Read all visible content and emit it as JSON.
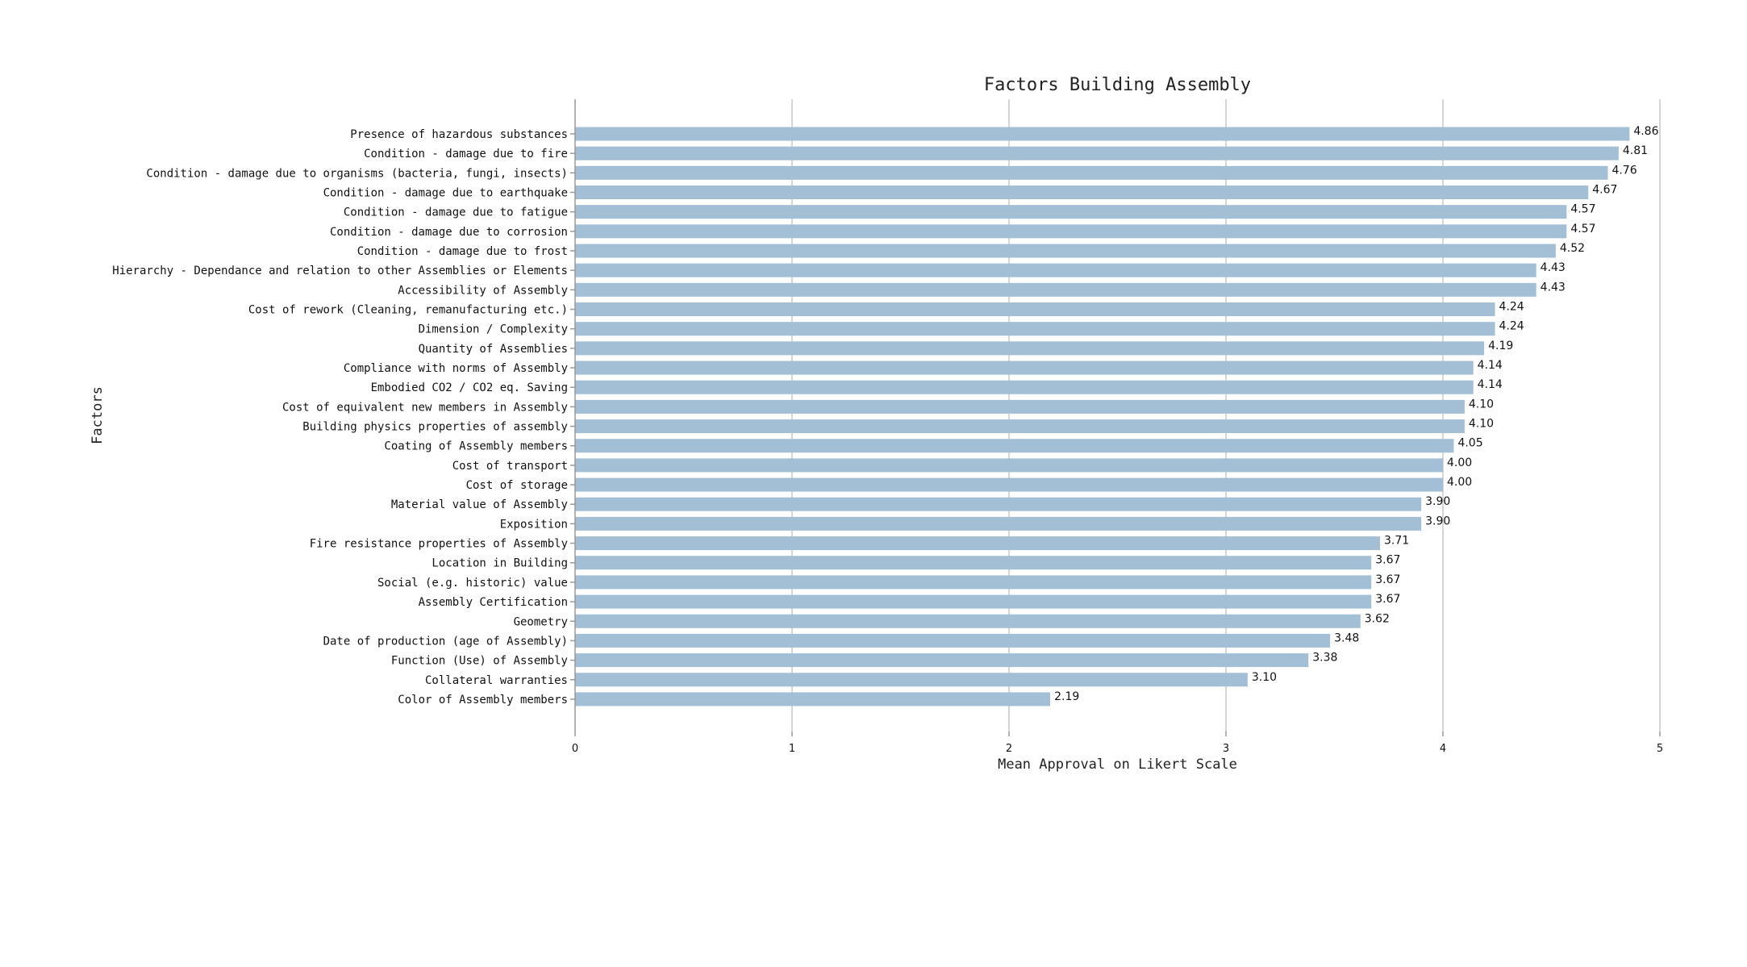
{
  "chart_data": {
    "type": "bar",
    "orientation": "horizontal",
    "title": "Factors Building Assembly",
    "xlabel": "Mean Approval on Likert Scale",
    "ylabel": "Factors",
    "xlim": [
      0,
      5
    ],
    "xticks": [
      0,
      1,
      2,
      3,
      4,
      5
    ],
    "grid": "vertical",
    "bar_color": "#a2bfd6",
    "categories": [
      "Presence of hazardous substances",
      "Condition - damage due to fire",
      "Condition - damage due to organisms (bacteria, fungi, insects)",
      "Condition - damage due to earthquake",
      "Condition - damage due to fatigue",
      "Condition - damage due to corrosion",
      "Condition - damage due to frost",
      "Hierarchy - Dependance and relation to other Assemblies or Elements",
      "Accessibility of Assembly",
      "Cost of rework (Cleaning, remanufacturing etc.)",
      "Dimension / Complexity",
      "Quantity of Assemblies",
      "Compliance with norms of Assembly",
      "Embodied CO2 / CO2 eq. Saving",
      "Cost of equivalent new members in Assembly",
      "Building physics properties of assembly",
      "Coating of Assembly members",
      "Cost of transport",
      "Cost of storage",
      "Material value of Assembly",
      "Exposition",
      "Fire resistance properties of Assembly",
      "Location in Building",
      "Social (e.g. historic) value",
      "Assembly Certification",
      "Geometry",
      "Date of production (age of Assembly)",
      "Function (Use) of Assembly",
      "Collateral warranties",
      "Color of Assembly members"
    ],
    "values": [
      4.86,
      4.81,
      4.76,
      4.67,
      4.57,
      4.57,
      4.52,
      4.43,
      4.43,
      4.24,
      4.24,
      4.19,
      4.14,
      4.14,
      4.1,
      4.1,
      4.05,
      4.0,
      4.0,
      3.9,
      3.9,
      3.71,
      3.67,
      3.67,
      3.67,
      3.62,
      3.48,
      3.38,
      3.1,
      2.19
    ],
    "value_labels": [
      "4.86",
      "4.81",
      "4.76",
      "4.67",
      "4.57",
      "4.57",
      "4.52",
      "4.43",
      "4.43",
      "4.24",
      "4.24",
      "4.19",
      "4.14",
      "4.14",
      "4.10",
      "4.10",
      "4.05",
      "4.00",
      "4.00",
      "3.90",
      "3.90",
      "3.71",
      "3.67",
      "3.67",
      "3.67",
      "3.62",
      "3.48",
      "3.38",
      "3.10",
      "2.19"
    ]
  }
}
